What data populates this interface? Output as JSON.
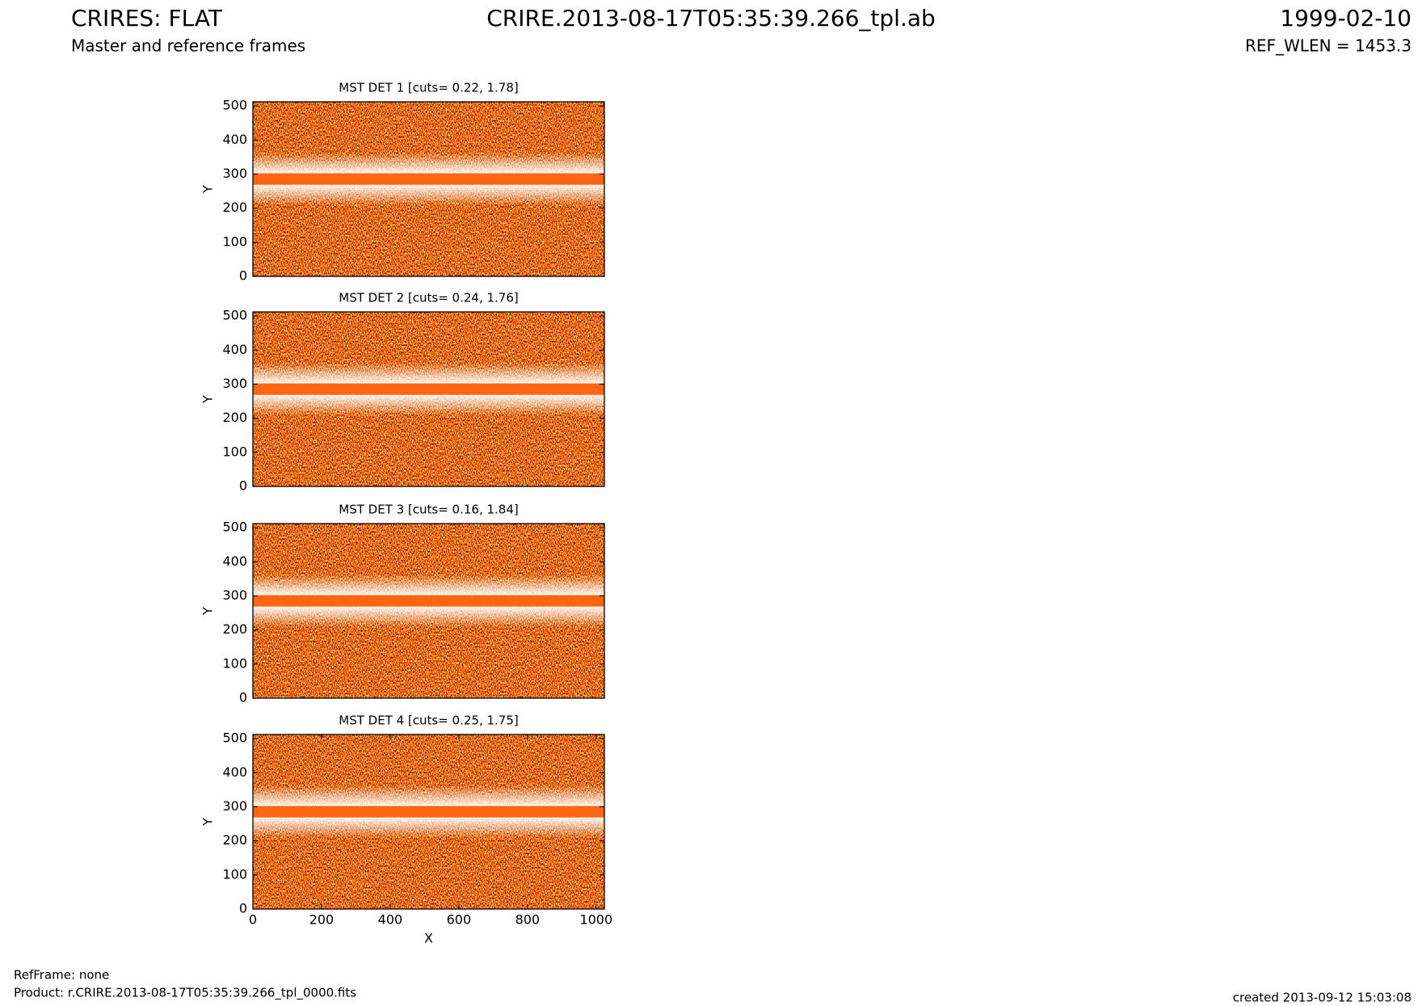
{
  "header": {
    "title": "CRIRES: FLAT",
    "subtitle": "Master and reference frames",
    "file": "CRIRE.2013-08-17T05:35:39.266_tpl.ab",
    "date": "1999-02-10",
    "ref_wlen": "REF_WLEN = 1453.3"
  },
  "chart_data": [
    {
      "type": "image",
      "title": "MST DET 1 [cuts= 0.22, 1.78]",
      "ylabel": "Y",
      "xlim": [
        0,
        1024
      ],
      "ylim": [
        0,
        512
      ],
      "yticks": [
        0,
        100,
        200,
        300,
        400,
        500
      ]
    },
    {
      "type": "image",
      "title": "MST DET 2 [cuts= 0.24, 1.76]",
      "ylabel": "Y",
      "xlim": [
        0,
        1024
      ],
      "ylim": [
        0,
        512
      ],
      "yticks": [
        0,
        100,
        200,
        300,
        400,
        500
      ]
    },
    {
      "type": "image",
      "title": "MST DET 3 [cuts= 0.16, 1.84]",
      "ylabel": "Y",
      "xlim": [
        0,
        1024
      ],
      "ylim": [
        0,
        512
      ],
      "yticks": [
        0,
        100,
        200,
        300,
        400,
        500
      ]
    },
    {
      "type": "image",
      "title": "MST DET 4 [cuts= 0.25, 1.75]",
      "ylabel": "Y",
      "xlabel": "X",
      "xlim": [
        0,
        1024
      ],
      "ylim": [
        0,
        512
      ],
      "yticks": [
        0,
        100,
        200,
        300,
        400,
        500
      ],
      "xticks": [
        0,
        200,
        400,
        600,
        800,
        1000
      ]
    }
  ],
  "footer": {
    "refframe": "RefFrame: none",
    "product": "Product: r.CRIRE.2013-08-17T05:35:39.266_tpl_0000.fits",
    "created": "created 2013-09-12 15:03:08"
  }
}
